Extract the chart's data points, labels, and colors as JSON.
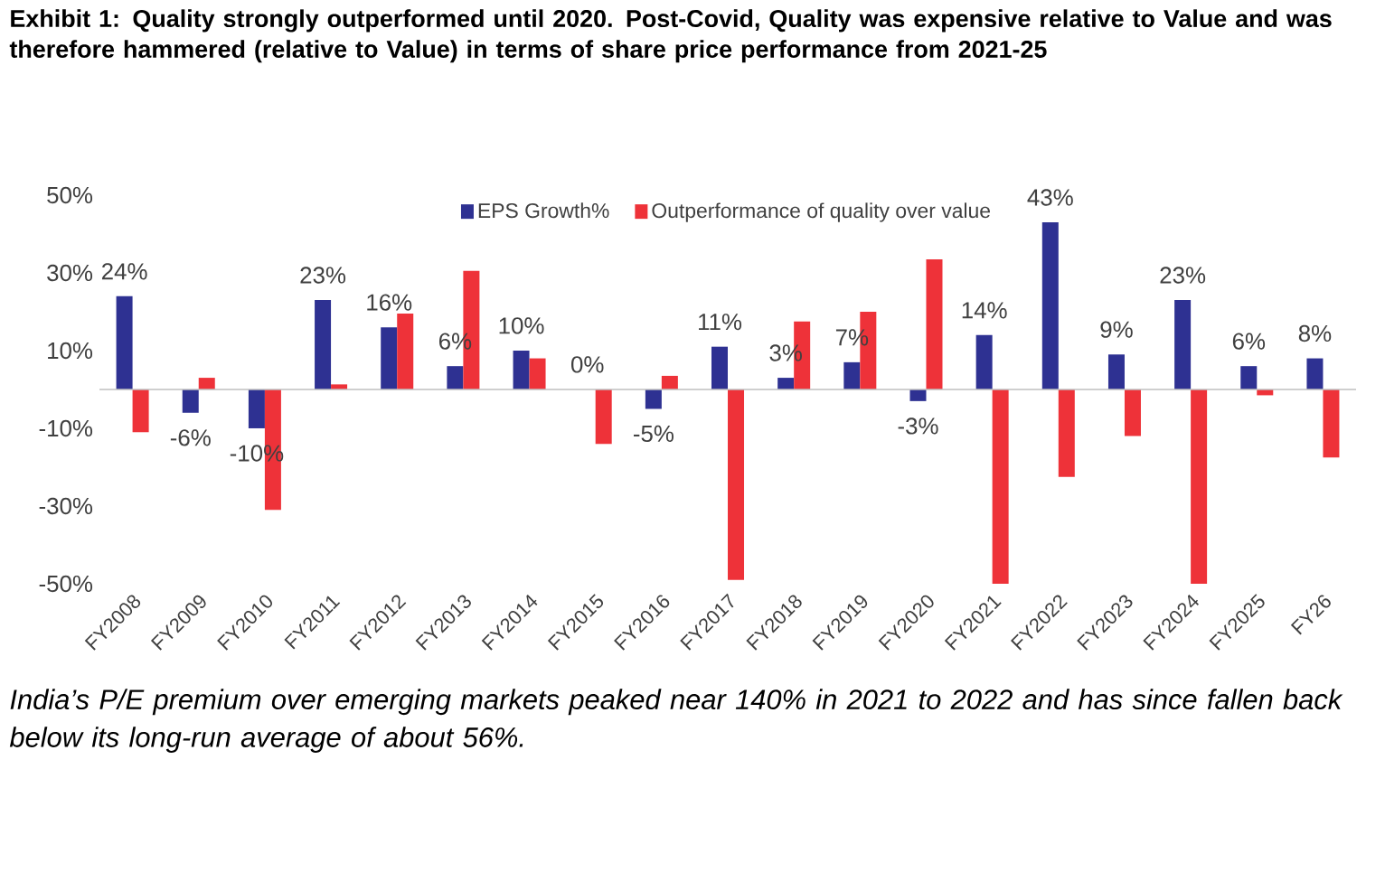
{
  "chart_data": {
    "type": "bar",
    "title": "Exhibit 1: Quality strongly outperformed until 2020. Post-Covid, Quality was expensive relative to Value and was therefore hammered (relative to Value) in terms of share price performance from 2021-25",
    "categories": [
      "FY2008",
      "FY2009",
      "FY2010",
      "FY2011",
      "FY2012",
      "FY2013",
      "FY2014",
      "FY2015",
      "FY2016",
      "FY2017",
      "FY2018",
      "FY2019",
      "FY2020",
      "FY2021",
      "FY2022",
      "FY2023",
      "FY2024",
      "FY2025",
      "FY26"
    ],
    "series": [
      {
        "name": "EPS Growth%",
        "color": "#2e3192",
        "values": [
          24,
          -6,
          -10,
          23,
          16,
          6,
          10,
          0,
          -5,
          11,
          3,
          7,
          -3,
          14,
          43,
          9,
          23,
          6,
          8
        ],
        "value_labels": [
          "24%",
          "-6%",
          "-10%",
          "23%",
          "16%",
          "6%",
          "10%",
          "0%",
          "-5%",
          "11%",
          "3%",
          "7%",
          "-3%",
          "14%",
          "43%",
          "9%",
          "23%",
          "6%",
          "8%"
        ]
      },
      {
        "name": "Outperformance of quality over value",
        "color": "#ee3239",
        "values": [
          -11,
          3,
          -31,
          1.3,
          19.5,
          30.5,
          8,
          -14,
          3.5,
          -49,
          17.5,
          20,
          33.5,
          -50,
          -22.5,
          -12,
          -50,
          -1.5,
          -17.5
        ]
      }
    ],
    "ylim": [
      -50,
      50
    ],
    "yticks": [
      {
        "value": -50,
        "label": "-50%"
      },
      {
        "value": -30,
        "label": "-30%"
      },
      {
        "value": -10,
        "label": "-10%"
      },
      {
        "value": 10,
        "label": "10%"
      },
      {
        "value": 30,
        "label": "30%"
      },
      {
        "value": 50,
        "label": "50%"
      }
    ],
    "legend": "top",
    "grid": false,
    "annotations": [
      "India’s P/E premium over emerging markets peaked near 140% in 2021 to 2022 and has since fallen back below its long-run average of about 56%."
    ]
  }
}
